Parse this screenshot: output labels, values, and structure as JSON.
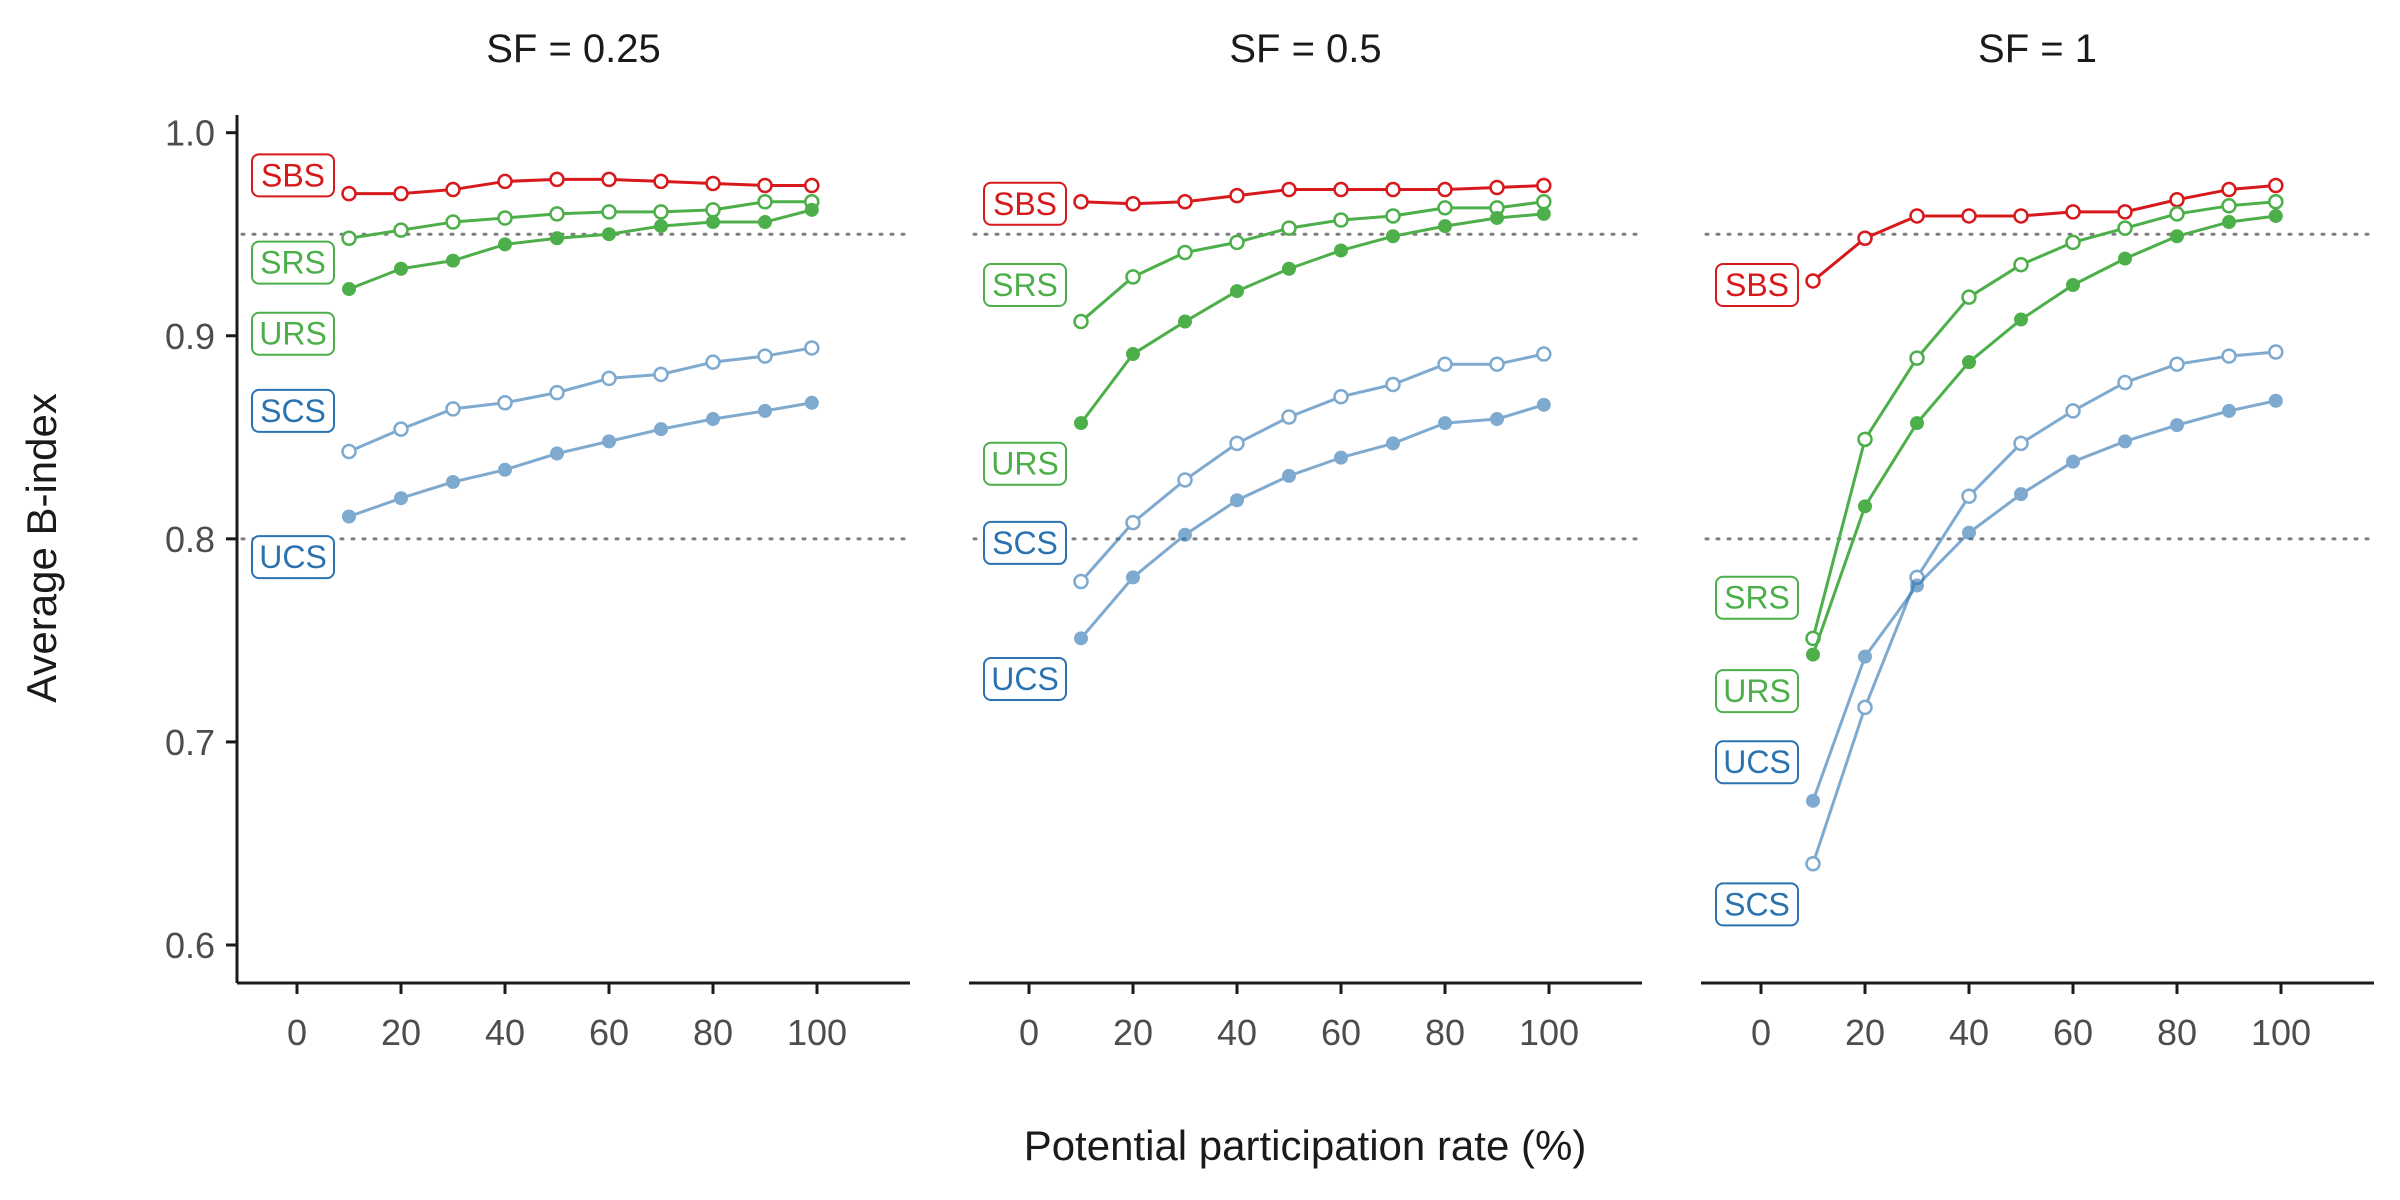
{
  "chart_data": {
    "type": "line",
    "title": "",
    "xlabel": "Potential participation rate (%)",
    "ylabel": "Average B-index",
    "xlim": [
      -10,
      105
    ],
    "ylim": [
      0.58,
      1.02
    ],
    "xticks": [
      "0",
      "20",
      "40",
      "60",
      "80",
      "100"
    ],
    "yticks": [
      "0.6",
      "0.7",
      "0.8",
      "0.9",
      "1.0"
    ],
    "reference_lines": [
      0.95,
      0.8
    ],
    "colors": {
      "SBS": "#d7191c",
      "SRS": "#4daf4a",
      "URS": "#4daf4a",
      "SCS": "#2b73b0",
      "UCS": "#2b73b0"
    },
    "x": [
      10,
      20,
      30,
      40,
      50,
      60,
      70,
      80,
      90,
      99
    ],
    "panels": [
      {
        "title": "SF = 0.25",
        "series": [
          {
            "name": "SBS",
            "marker": "open",
            "values": [
              0.97,
              0.97,
              0.972,
              0.976,
              0.977,
              0.977,
              0.976,
              0.975,
              0.974,
              0.974
            ]
          },
          {
            "name": "SRS",
            "marker": "open",
            "values": [
              0.948,
              0.952,
              0.956,
              0.958,
              0.96,
              0.961,
              0.961,
              0.962,
              0.966,
              0.966
            ]
          },
          {
            "name": "URS",
            "marker": "filled",
            "values": [
              0.923,
              0.933,
              0.937,
              0.945,
              0.948,
              0.95,
              0.954,
              0.956,
              0.956,
              0.962
            ]
          },
          {
            "name": "SCS",
            "marker": "open",
            "values": [
              0.843,
              0.854,
              0.864,
              0.867,
              0.872,
              0.879,
              0.881,
              0.887,
              0.89,
              0.894
            ]
          },
          {
            "name": "UCS",
            "marker": "filled",
            "values": [
              0.811,
              0.82,
              0.828,
              0.834,
              0.842,
              0.848,
              0.854,
              0.859,
              0.863,
              0.867
            ]
          }
        ],
        "labels": [
          {
            "text": "SBS",
            "y": 0.979
          },
          {
            "text": "SRS",
            "y": 0.936
          },
          {
            "text": "URS",
            "y": 0.901
          },
          {
            "text": "SCS",
            "y": 0.863
          },
          {
            "text": "UCS",
            "y": 0.791
          }
        ]
      },
      {
        "title": "SF = 0.5",
        "series": [
          {
            "name": "SBS",
            "marker": "open",
            "values": [
              0.966,
              0.965,
              0.966,
              0.969,
              0.972,
              0.972,
              0.972,
              0.972,
              0.973,
              0.974
            ]
          },
          {
            "name": "SRS",
            "marker": "open",
            "values": [
              0.907,
              0.929,
              0.941,
              0.946,
              0.953,
              0.957,
              0.959,
              0.963,
              0.963,
              0.966
            ]
          },
          {
            "name": "URS",
            "marker": "filled",
            "values": [
              0.857,
              0.891,
              0.907,
              0.922,
              0.933,
              0.942,
              0.949,
              0.954,
              0.958,
              0.96
            ]
          },
          {
            "name": "SCS",
            "marker": "open",
            "values": [
              0.779,
              0.808,
              0.829,
              0.847,
              0.86,
              0.87,
              0.876,
              0.886,
              0.886,
              0.891
            ]
          },
          {
            "name": "UCS",
            "marker": "filled",
            "values": [
              0.751,
              0.781,
              0.802,
              0.819,
              0.831,
              0.84,
              0.847,
              0.857,
              0.859,
              0.866
            ]
          }
        ],
        "labels": [
          {
            "text": "SBS",
            "y": 0.965
          },
          {
            "text": "SRS",
            "y": 0.925
          },
          {
            "text": "URS",
            "y": 0.837
          },
          {
            "text": "SCS",
            "y": 0.798
          },
          {
            "text": "UCS",
            "y": 0.731
          }
        ]
      },
      {
        "title": "SF = 1",
        "series": [
          {
            "name": "SBS",
            "marker": "open",
            "values": [
              0.927,
              0.948,
              0.959,
              0.959,
              0.959,
              0.961,
              0.961,
              0.967,
              0.972,
              0.974
            ]
          },
          {
            "name": "SRS",
            "marker": "open",
            "values": [
              0.751,
              0.849,
              0.889,
              0.919,
              0.935,
              0.946,
              0.953,
              0.96,
              0.964,
              0.966
            ]
          },
          {
            "name": "URS",
            "marker": "filled",
            "values": [
              0.743,
              0.816,
              0.857,
              0.887,
              0.908,
              0.925,
              0.938,
              0.949,
              0.956,
              0.959
            ]
          },
          {
            "name": "SCS",
            "marker": "open",
            "values": [
              0.64,
              0.717,
              0.781,
              0.821,
              0.847,
              0.863,
              0.877,
              0.886,
              0.89,
              0.892
            ]
          },
          {
            "name": "UCS",
            "marker": "filled",
            "values": [
              0.671,
              0.742,
              0.777,
              0.803,
              0.822,
              0.838,
              0.848,
              0.856,
              0.863,
              0.868
            ]
          }
        ],
        "labels": [
          {
            "text": "SBS",
            "y": 0.925
          },
          {
            "text": "SRS",
            "y": 0.771
          },
          {
            "text": "URS",
            "y": 0.725
          },
          {
            "text": "UCS",
            "y": 0.69
          },
          {
            "text": "SCS",
            "y": 0.62
          }
        ]
      }
    ]
  }
}
